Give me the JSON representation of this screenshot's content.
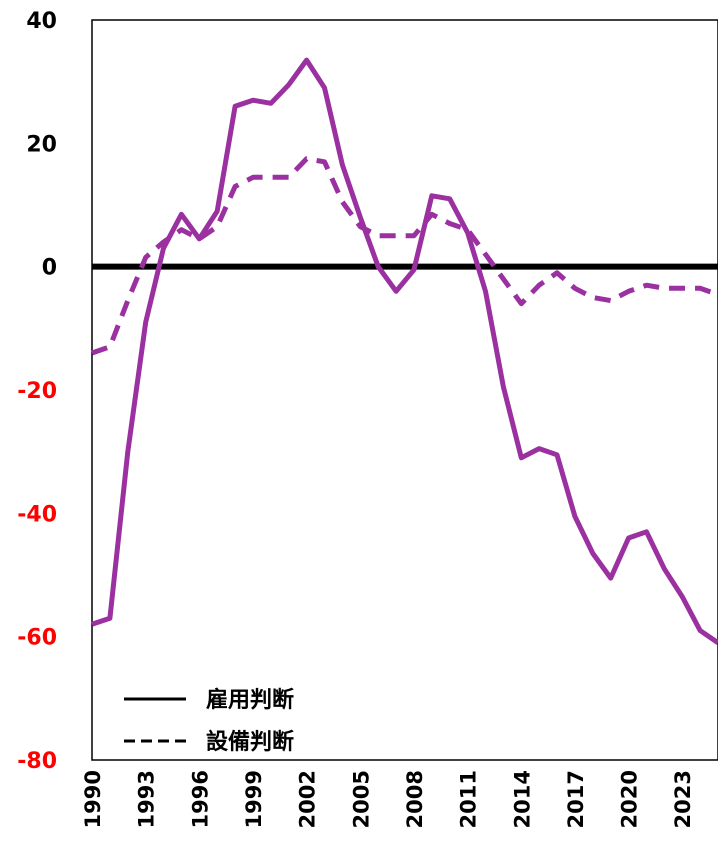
{
  "chart_data": {
    "type": "line",
    "title": "",
    "xlabel": "",
    "ylabel": "",
    "x": [
      1990,
      1991,
      1992,
      1993,
      1994,
      1995,
      1996,
      1997,
      1998,
      1999,
      2000,
      2001,
      2002,
      2003,
      2004,
      2005,
      2006,
      2007,
      2008,
      2009,
      2010,
      2011,
      2012,
      2013,
      2014,
      2015,
      2016,
      2017,
      2018,
      2019,
      2020,
      2021,
      2022,
      2023,
      2024,
      2025
    ],
    "xticks": [
      "1990",
      "1993",
      "1996",
      "1999",
      "2002",
      "2005",
      "2008",
      "2011",
      "2014",
      "2017",
      "2020",
      "2023"
    ],
    "xlim": [
      1990,
      2025
    ],
    "ylim": [
      -80,
      40
    ],
    "yticks": [
      {
        "value": 40,
        "label": "40",
        "color": "#000000"
      },
      {
        "value": 20,
        "label": "20",
        "color": "#000000"
      },
      {
        "value": 0,
        "label": "0",
        "color": "#000000"
      },
      {
        "value": -20,
        "label": "-20",
        "color": "#ff0000"
      },
      {
        "value": -40,
        "label": "-40",
        "color": "#ff0000"
      },
      {
        "value": -60,
        "label": "-60",
        "color": "#ff0000"
      },
      {
        "value": -80,
        "label": "-80",
        "color": "#ff0000"
      }
    ],
    "zero_line": true,
    "grid": false,
    "legend_position": "bottom-left",
    "line_color": "#9b30a0",
    "series": [
      {
        "name": "雇用判断",
        "style": "solid",
        "values": [
          -58,
          -57,
          -30,
          -9,
          3,
          8.5,
          4.5,
          9,
          26,
          27,
          26.5,
          29.5,
          33.5,
          29,
          16.5,
          8,
          0,
          -4,
          -0.5,
          11.5,
          11,
          5.5,
          -4,
          -19.5,
          -31,
          -29.5,
          -30.5,
          -40.5,
          -46.5,
          -50.5,
          -44,
          -43,
          -49,
          -53.5,
          -59,
          -61
        ]
      },
      {
        "name": "設備判断",
        "style": "dashed",
        "values": [
          -14,
          -13,
          -5.5,
          1.5,
          4,
          6,
          4.5,
          6.5,
          13,
          14.5,
          14.5,
          14.5,
          17.5,
          17,
          10.5,
          6.5,
          5,
          5,
          5,
          8.5,
          7,
          6,
          2,
          -2,
          -6,
          -3,
          -1,
          -3.5,
          -5,
          -5.5,
          -4,
          -3,
          -3.5,
          -3.5,
          -3.5,
          -4.5
        ]
      }
    ]
  }
}
